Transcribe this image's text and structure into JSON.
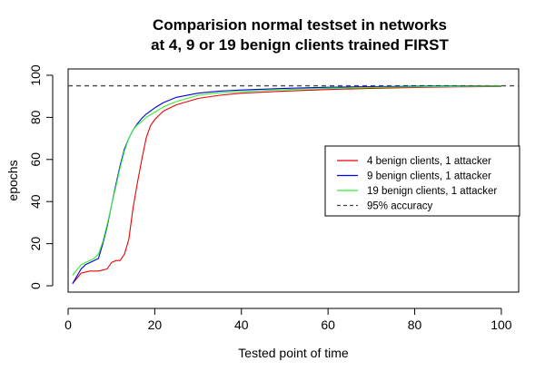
{
  "chart_data": {
    "type": "line",
    "title_lines": [
      "Comparision normal testset in networks",
      "at 4, 9 or 19 benign clients trained FIRST"
    ],
    "xlabel": "Tested point of time",
    "ylabel": "epochs",
    "xlim": [
      0,
      104
    ],
    "ylim": [
      -3,
      103
    ],
    "xticks": [
      0,
      20,
      40,
      60,
      80,
      100
    ],
    "yticks": [
      0,
      20,
      40,
      60,
      80,
      100
    ],
    "grid": false,
    "legend_position": "right",
    "reference_line": {
      "name": "95% accuracy",
      "y": 95,
      "color": "#444444",
      "style": "dashed"
    },
    "series": [
      {
        "name": "4 benign clients, 1 attacker",
        "color": "#ee0000",
        "x": [
          1,
          3,
          5,
          7,
          9,
          10,
          11,
          12,
          13,
          14,
          15,
          16,
          17,
          18,
          19,
          20,
          22,
          25,
          30,
          35,
          40,
          50,
          60,
          70,
          80,
          90,
          100
        ],
        "y": [
          1,
          6,
          7,
          7,
          8,
          11,
          12,
          12,
          15,
          22,
          37,
          49,
          60,
          70,
          76,
          79,
          83,
          86,
          89,
          90.5,
          91.5,
          92.5,
          93.2,
          93.8,
          94.2,
          94.5,
          94.7
        ]
      },
      {
        "name": "9 benign clients, 1 attacker",
        "color": "#0000dd",
        "x": [
          1,
          3,
          4,
          5,
          6,
          7,
          8,
          9,
          10,
          11,
          12,
          13,
          14,
          15,
          16,
          17,
          18,
          20,
          22,
          25,
          30,
          35,
          40,
          50,
          60,
          70,
          80,
          90,
          100
        ],
        "y": [
          1,
          8,
          10,
          11,
          12,
          13,
          20,
          28,
          38,
          48,
          57,
          65,
          70,
          74,
          77,
          79.5,
          81.5,
          84.5,
          87,
          89.5,
          91.5,
          92.5,
          93,
          93.8,
          94.3,
          94.6,
          94.8,
          94.9,
          95
        ]
      },
      {
        "name": "19 benign clients, 1 attacker",
        "color": "#33ee33",
        "x": [
          1,
          3,
          4,
          5,
          6,
          7,
          8,
          9,
          10,
          11,
          12,
          13,
          14,
          15,
          16,
          17,
          18,
          20,
          22,
          25,
          30,
          35,
          40,
          50,
          60,
          70,
          80,
          90,
          100
        ],
        "y": [
          5,
          10,
          11,
          12,
          13,
          15,
          21,
          29,
          38,
          47,
          56,
          64,
          70,
          74,
          76.5,
          78,
          80,
          82.5,
          85,
          87.5,
          90.5,
          91.7,
          92.3,
          93.2,
          93.8,
          94.2,
          94.5,
          94.7,
          94.9
        ]
      }
    ]
  }
}
